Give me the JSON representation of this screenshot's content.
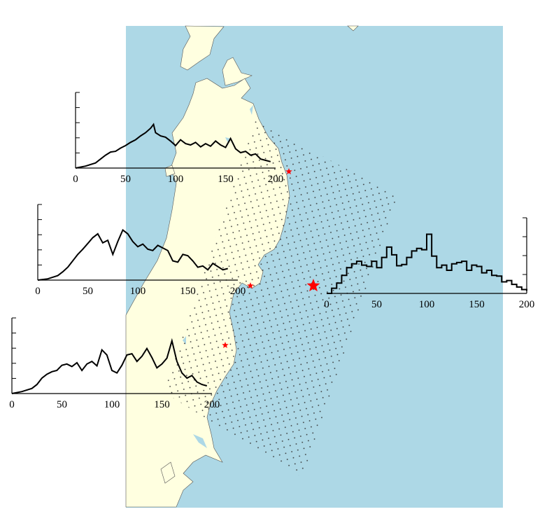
{
  "map": {
    "sea_color": "#add8e6",
    "land_color": "#ffffe0",
    "coast_color": "#555555",
    "lake_color": "#add8e6",
    "grid_color": "#333333",
    "epicenter_color": "#ff0000",
    "station_color": "#ff0000"
  },
  "chart_data": [
    {
      "type": "line",
      "title": "",
      "xlabel": "",
      "ylabel": "",
      "xlim": [
        0,
        200
      ],
      "xticks": [
        "0",
        "50",
        "100",
        "150",
        "200"
      ],
      "y_tick_count": 5,
      "series": [
        {
          "x": [
            0,
            10,
            20,
            25,
            30,
            35,
            40,
            45,
            50,
            55,
            60,
            65,
            70,
            75,
            78,
            80,
            85,
            90,
            95,
            100,
            105,
            110,
            115,
            120,
            125,
            130,
            135,
            140,
            145,
            150,
            155,
            160,
            165,
            170,
            175,
            180,
            185,
            190,
            195
          ],
          "y": [
            0,
            0.03,
            0.08,
            0.14,
            0.2,
            0.25,
            0.26,
            0.31,
            0.35,
            0.4,
            0.44,
            0.5,
            0.55,
            0.62,
            0.68,
            0.55,
            0.5,
            0.48,
            0.42,
            0.35,
            0.44,
            0.38,
            0.36,
            0.4,
            0.33,
            0.38,
            0.34,
            0.42,
            0.36,
            0.32,
            0.46,
            0.3,
            0.24,
            0.26,
            0.2,
            0.22,
            0.14,
            0.12,
            0.1
          ]
        }
      ]
    },
    {
      "type": "line",
      "title": "",
      "xlabel": "",
      "ylabel": "",
      "xlim": [
        0,
        200
      ],
      "xticks": [
        "0",
        "50",
        "100",
        "150",
        "200"
      ],
      "y_tick_count": 5,
      "series": [
        {
          "x": [
            0,
            10,
            20,
            25,
            30,
            35,
            40,
            45,
            50,
            55,
            60,
            65,
            70,
            75,
            80,
            85,
            90,
            95,
            100,
            105,
            110,
            115,
            120,
            125,
            130,
            135,
            140,
            145,
            150,
            155,
            160,
            165,
            170,
            175,
            180,
            185,
            190
          ],
          "y": [
            0,
            0.02,
            0.07,
            0.13,
            0.2,
            0.3,
            0.4,
            0.48,
            0.57,
            0.66,
            0.72,
            0.58,
            0.62,
            0.4,
            0.6,
            0.78,
            0.72,
            0.6,
            0.52,
            0.56,
            0.48,
            0.46,
            0.54,
            0.5,
            0.46,
            0.3,
            0.28,
            0.4,
            0.38,
            0.3,
            0.2,
            0.22,
            0.16,
            0.26,
            0.21,
            0.16,
            0.18
          ]
        }
      ]
    },
    {
      "type": "line",
      "title": "",
      "xlabel": "",
      "ylabel": "",
      "xlim": [
        0,
        200
      ],
      "xticks": [
        "0",
        "50",
        "100",
        "150",
        "200"
      ],
      "y_tick_count": 5,
      "series": [
        {
          "x": [
            0,
            10,
            20,
            25,
            30,
            35,
            40,
            45,
            50,
            55,
            60,
            65,
            70,
            75,
            80,
            85,
            90,
            95,
            100,
            105,
            110,
            115,
            120,
            125,
            130,
            135,
            140,
            145,
            150,
            155,
            160,
            165,
            170,
            175,
            180,
            185,
            190,
            195
          ],
          "y": [
            0,
            0.03,
            0.08,
            0.14,
            0.24,
            0.3,
            0.34,
            0.36,
            0.44,
            0.46,
            0.42,
            0.48,
            0.36,
            0.46,
            0.5,
            0.43,
            0.68,
            0.6,
            0.36,
            0.32,
            0.44,
            0.6,
            0.62,
            0.5,
            0.58,
            0.7,
            0.56,
            0.4,
            0.46,
            0.55,
            0.82,
            0.5,
            0.32,
            0.24,
            0.28,
            0.18,
            0.14,
            0.12
          ]
        }
      ]
    },
    {
      "type": "line",
      "title": "",
      "xlabel": "",
      "ylabel": "",
      "xlim": [
        0,
        200
      ],
      "xticks": [
        "0",
        "50",
        "100",
        "150",
        "200"
      ],
      "y_tick_count": 4,
      "series": [
        {
          "x": [
            0,
            5,
            10,
            15,
            20,
            25,
            30,
            35,
            40,
            45,
            50,
            55,
            60,
            65,
            70,
            75,
            80,
            85,
            90,
            95,
            100,
            105,
            110,
            115,
            120,
            125,
            130,
            135,
            140,
            145,
            150,
            155,
            160,
            165,
            170,
            175,
            180,
            185,
            190,
            195,
            200
          ],
          "y": [
            0,
            0.08,
            0.16,
            0.28,
            0.4,
            0.46,
            0.5,
            0.44,
            0.42,
            0.5,
            0.4,
            0.56,
            0.72,
            0.6,
            0.43,
            0.45,
            0.56,
            0.66,
            0.7,
            0.68,
            0.92,
            0.58,
            0.4,
            0.44,
            0.36,
            0.46,
            0.48,
            0.5,
            0.36,
            0.44,
            0.42,
            0.32,
            0.36,
            0.28,
            0.27,
            0.18,
            0.2,
            0.14,
            0.1,
            0.06,
            0.04
          ]
        }
      ]
    }
  ]
}
